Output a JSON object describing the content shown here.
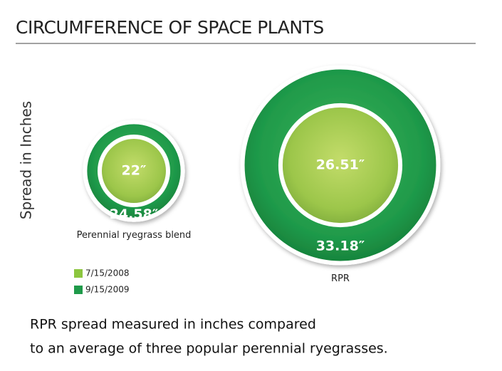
{
  "chart_data": {
    "type": "nested-circles",
    "title": "CIRCUMFERENCE OF SPACE PLANTS",
    "y_label": "Spread in Inches",
    "categories": [
      "Perennial ryegrass blend",
      "RPR"
    ],
    "series": [
      {
        "name": "7/15/2008",
        "color": "#8cc63f",
        "values": [
          22,
          26.51
        ],
        "value_labels": [
          "22″",
          "26.51″"
        ]
      },
      {
        "name": "9/15/2009",
        "color": "#1f9a4a",
        "values": [
          24.58,
          33.18
        ],
        "value_labels": [
          "24.58″",
          "33.18″"
        ]
      }
    ],
    "caption": [
      "RPR spread measured in inches compared",
      "to an average of three popular perennial ryegrasses."
    ]
  }
}
